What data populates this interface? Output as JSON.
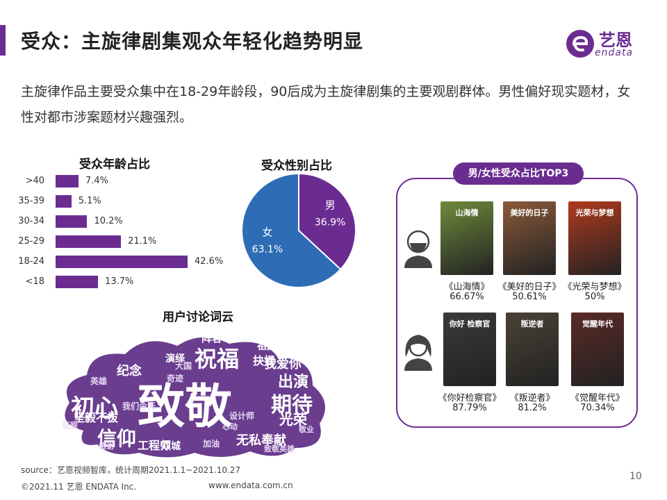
{
  "header": {
    "title": "受众：主旋律剧集观众年轻化趋势明显",
    "logo_cn": "艺恩",
    "logo_en": "endata"
  },
  "intro": "主旋律作品主要受众集中在18-29年龄段，90后成为主旋律剧集的主要观剧群体。男性偏好现实题材，女性对都市涉案题材兴趣强烈。",
  "colors": {
    "accent": "#6b2c91",
    "female": "#2e6db5",
    "male": "#6b2c91"
  },
  "chart_data": [
    {
      "type": "bar",
      "orientation": "horizontal",
      "title": "受众年龄占比",
      "categories": [
        ">40",
        "35-39",
        "30-34",
        "25-29",
        "18-24",
        "<18"
      ],
      "values": [
        7.4,
        5.1,
        10.2,
        21.1,
        42.6,
        13.7
      ],
      "value_labels": [
        "7.4%",
        "5.1%",
        "10.2%",
        "21.1%",
        "42.6%",
        "13.7%"
      ],
      "xlim": [
        0,
        45
      ],
      "grid": false
    },
    {
      "type": "pie",
      "title": "受众性别占比",
      "slices": [
        {
          "name": "男",
          "value": 36.9,
          "label": "36.9%",
          "color": "#6b2c91"
        },
        {
          "name": "女",
          "value": 63.1,
          "label": "63.1%",
          "color": "#2e6db5"
        }
      ]
    }
  ],
  "top3": {
    "title": "男/女性受众占比TOP3",
    "male": [
      {
        "name": "《山海情》",
        "pct": "66.67%",
        "poster_text": "山海情"
      },
      {
        "name": "《美好的日子》",
        "pct": "50.61%",
        "poster_text": "美好的日子"
      },
      {
        "name": "《光荣与梦想》",
        "pct": "50%",
        "poster_text": "光荣与梦想"
      }
    ],
    "female": [
      {
        "name": "《你好检察官》",
        "pct": "87.79%",
        "poster_text": "你好 检察官"
      },
      {
        "name": "《叛逆者》",
        "pct": "81.2%",
        "poster_text": "叛逆者"
      },
      {
        "name": "《觉醒年代》",
        "pct": "70.34%",
        "poster_text": "觉醒年代"
      }
    ]
  },
  "wordcloud": {
    "title": "用户讨论词云",
    "words": [
      "致敬",
      "祝福",
      "初心",
      "期待",
      "信仰",
      "出演",
      "光荣",
      "纪念",
      "坚毅不拔",
      "无私奉献",
      "我爱你",
      "工程师",
      "双城",
      "演绎",
      "阵容",
      "抉择",
      "祖国",
      "大国",
      "奇迹",
      "加油",
      "设计师",
      "英雄",
      "我们今天",
      "感谢",
      "征程",
      "心动",
      "敬业",
      "致敬英雄",
      "浪漫",
      "工匠"
    ]
  },
  "footer": {
    "source": "source：艺恩视频智库，统计周期2021.1.1~2021.10.27",
    "copyright": "©2021.11 艺恩 ENDATA Inc.",
    "website": "www.endata.com.cn",
    "page": "10"
  }
}
